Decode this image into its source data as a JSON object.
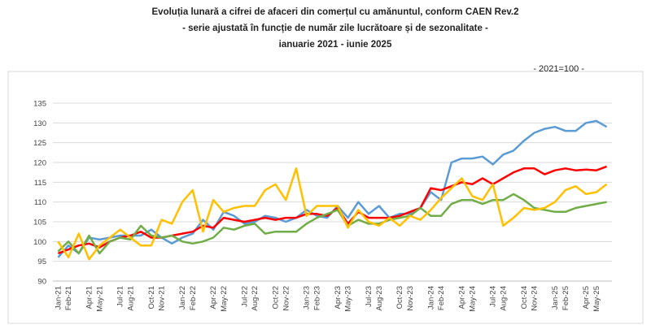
{
  "chart_data": {
    "type": "line",
    "title": [
      "Evoluția lunară a cifrei de afaceri din comerțul cu amănuntul, conform CAEN Rev.2",
      "- serie ajustată în funcție de număr zile lucrătoare și de sezonalitate -",
      "ianuarie 2021 - iunie 2025"
    ],
    "subtitle": "- 2021=100 -",
    "categories": [
      "Jan-21",
      "Feb-21",
      null,
      "Apr-21",
      "May-21",
      null,
      "Jul-21",
      "Aug-21",
      null,
      "Oct-21",
      "Nov-21",
      null,
      "Jan-22",
      "Feb-22",
      null,
      "Apr-22",
      "May-22",
      null,
      "Jul-22",
      "Aug-22",
      null,
      "Oct-22",
      "Nov-22",
      null,
      "Jan-23",
      "Feb-23",
      null,
      "Apr-23",
      "May-23",
      null,
      "Jul-23",
      "Aug-23",
      null,
      "Oct-23",
      "Nov-23",
      null,
      "Jan-24",
      "Feb-24",
      null,
      "Apr-24",
      "May-24",
      null,
      "Jul-24",
      "Aug-24",
      null,
      "Oct-24",
      "Nov-24",
      null,
      "Jan-25",
      "Feb-25",
      null,
      "Apr-25",
      "May-25",
      null
    ],
    "series": [
      {
        "color": "#5b9bd5",
        "values": [
          96,
          99,
          97,
          101,
          100.5,
          101,
          101.5,
          101.5,
          101.5,
          103,
          101,
          99.5,
          101,
          102,
          105.5,
          103,
          107.5,
          106.5,
          104.5,
          105,
          106.5,
          106,
          105,
          106,
          108,
          106.5,
          106,
          109,
          106,
          110,
          107,
          109,
          106,
          107,
          107,
          108.5,
          112.5,
          110.5,
          120,
          121,
          121,
          121.5,
          119.5,
          122,
          123,
          125.5,
          127.5,
          128.5,
          129,
          128,
          128,
          130,
          130.5,
          129
        ]
      },
      {
        "color": "#ff0000",
        "values": [
          97,
          98,
          99,
          99.5,
          98.5,
          100,
          101,
          101.5,
          102.5,
          101,
          101,
          101.5,
          102,
          102.5,
          104,
          103.5,
          106,
          105.5,
          105,
          105.5,
          106,
          105.5,
          106,
          106,
          107,
          107,
          106.5,
          108.5,
          104.5,
          107.5,
          106,
          106,
          106,
          106.5,
          107.5,
          108.5,
          113.5,
          113,
          114,
          115,
          114.5,
          116,
          114.5,
          116,
          117.5,
          118.5,
          118.5,
          117,
          118,
          118.5,
          118,
          118.2,
          118,
          119
        ]
      },
      {
        "color": "#70ad47",
        "values": [
          97.5,
          100,
          97,
          101.5,
          97,
          100,
          101,
          100.5,
          104,
          101.5,
          101,
          101.5,
          100,
          99.5,
          100,
          101,
          103.5,
          103,
          104,
          104.5,
          102,
          102.5,
          102.5,
          102.5,
          104.5,
          106,
          107,
          108,
          104,
          105.5,
          104.5,
          104.5,
          105.5,
          106,
          106.5,
          108.5,
          106.5,
          106.5,
          109.5,
          110.5,
          110.5,
          109.5,
          110.5,
          110.5,
          112,
          110.5,
          108.5,
          108,
          107.5,
          107.5,
          108.5,
          109,
          109.5,
          110
        ]
      },
      {
        "color": "#ffc000",
        "values": [
          100,
          96,
          102,
          95.5,
          99,
          101,
          103,
          101,
          99,
          99,
          105.5,
          104.5,
          110,
          113,
          102.5,
          110.5,
          107.5,
          108.5,
          109,
          109,
          113,
          114.5,
          110.5,
          118.5,
          106.5,
          109,
          109,
          109,
          103.5,
          108,
          105,
          104,
          106,
          104,
          106.5,
          105.5,
          108,
          111,
          113.5,
          116,
          111.5,
          110.5,
          114.5,
          104,
          106,
          108.5,
          108,
          108.5,
          110,
          113,
          114,
          112,
          112.5,
          114.5
        ]
      }
    ],
    "ylim": [
      90,
      135
    ],
    "yticks": [
      90,
      95,
      100,
      105,
      110,
      115,
      120,
      125,
      130,
      135
    ],
    "grid": true
  }
}
